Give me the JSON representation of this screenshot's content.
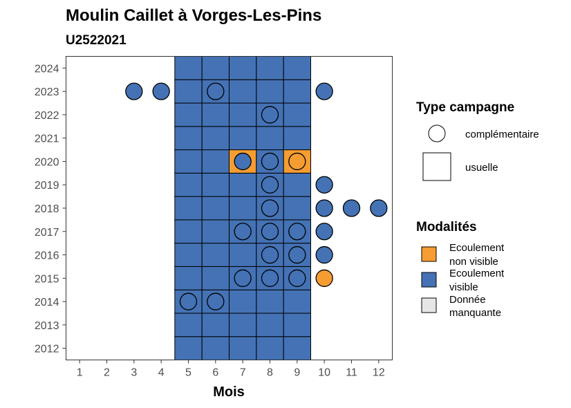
{
  "chart_data": {
    "type": "heatmap",
    "title": "Moulin Caillet à Vorges-Les-Pins",
    "subtitle": "U2522021",
    "xlabel": "Mois",
    "ylabel": "",
    "x_ticks": [
      1,
      2,
      3,
      4,
      5,
      6,
      7,
      8,
      9,
      10,
      11,
      12
    ],
    "y_ticks": [
      2012,
      2013,
      2014,
      2015,
      2016,
      2017,
      2018,
      2019,
      2020,
      2021,
      2022,
      2023,
      2024
    ],
    "xlim": [
      0.5,
      12.5
    ],
    "ylim": [
      2011.5,
      2024.5
    ],
    "grid": false,
    "legend_placement": "right",
    "legend_shape": {
      "title": "Type campagne",
      "entries": [
        {
          "shape": "circle",
          "label": "complémentaire"
        },
        {
          "shape": "square",
          "label": "usuelle"
        }
      ]
    },
    "legend_fill": {
      "title": "Modalités",
      "entries": [
        {
          "key": "ev",
          "line1": "Ecoulement",
          "line2": "visible",
          "color": "#4472b5"
        },
        {
          "key": "env",
          "line1": "Ecoulement",
          "line2": "non visible",
          "color": "#f59d32"
        },
        {
          "key": "dm",
          "line1": "Donnée",
          "line2": "manquante",
          "color": "#e6e6e6"
        }
      ]
    },
    "colors": {
      "ev": "#4472b5",
      "env": "#f59d32",
      "dm": "#e6e6e6"
    },
    "usuelle_months": [
      5,
      6,
      7,
      8,
      9
    ],
    "usuelle_years": [
      2012,
      2013,
      2014,
      2015,
      2016,
      2017,
      2018,
      2019,
      2020,
      2021,
      2022,
      2023,
      2024
    ],
    "usuelle_exceptions": [
      {
        "year": 2020,
        "month": 7,
        "modalite": "env"
      },
      {
        "year": 2020,
        "month": 9,
        "modalite": "env"
      }
    ],
    "complementaire": [
      {
        "year": 2023,
        "month": 3,
        "modalite": "ev"
      },
      {
        "year": 2023,
        "month": 4,
        "modalite": "ev"
      },
      {
        "year": 2023,
        "month": 6,
        "modalite": "ev"
      },
      {
        "year": 2023,
        "month": 10,
        "modalite": "ev"
      },
      {
        "year": 2022,
        "month": 8,
        "modalite": "ev"
      },
      {
        "year": 2020,
        "month": 7,
        "modalite": "ev"
      },
      {
        "year": 2020,
        "month": 8,
        "modalite": "ev"
      },
      {
        "year": 2020,
        "month": 9,
        "modalite": "env"
      },
      {
        "year": 2019,
        "month": 8,
        "modalite": "ev"
      },
      {
        "year": 2019,
        "month": 10,
        "modalite": "ev"
      },
      {
        "year": 2018,
        "month": 8,
        "modalite": "ev"
      },
      {
        "year": 2018,
        "month": 10,
        "modalite": "ev"
      },
      {
        "year": 2018,
        "month": 11,
        "modalite": "ev"
      },
      {
        "year": 2018,
        "month": 12,
        "modalite": "ev"
      },
      {
        "year": 2017,
        "month": 7,
        "modalite": "ev"
      },
      {
        "year": 2017,
        "month": 8,
        "modalite": "ev"
      },
      {
        "year": 2017,
        "month": 9,
        "modalite": "ev"
      },
      {
        "year": 2017,
        "month": 10,
        "modalite": "ev"
      },
      {
        "year": 2016,
        "month": 8,
        "modalite": "ev"
      },
      {
        "year": 2016,
        "month": 9,
        "modalite": "ev"
      },
      {
        "year": 2016,
        "month": 10,
        "modalite": "ev"
      },
      {
        "year": 2015,
        "month": 7,
        "modalite": "ev"
      },
      {
        "year": 2015,
        "month": 8,
        "modalite": "ev"
      },
      {
        "year": 2015,
        "month": 9,
        "modalite": "ev"
      },
      {
        "year": 2015,
        "month": 10,
        "modalite": "env"
      },
      {
        "year": 2014,
        "month": 5,
        "modalite": "ev"
      },
      {
        "year": 2014,
        "month": 6,
        "modalite": "ev"
      }
    ]
  }
}
